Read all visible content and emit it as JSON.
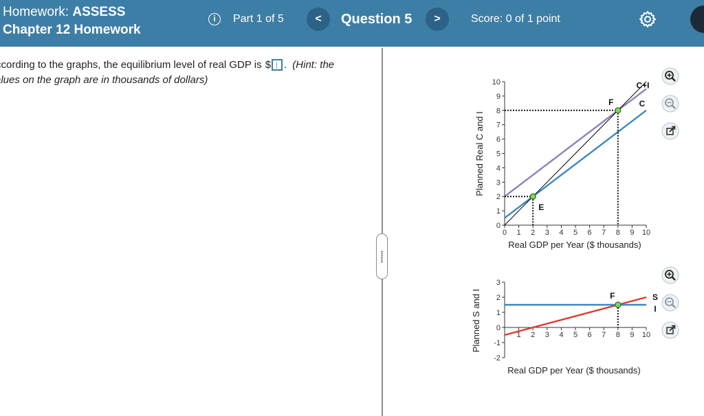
{
  "header": {
    "homework_prefix": "Homework: ",
    "homework_name": "ASSESS",
    "chapter": "Chapter 12 Homework",
    "part": "Part 1 of 5",
    "prev_symbol": "<",
    "question": "Question 5",
    "next_symbol": ">",
    "score": "Score: 0 of 1 point",
    "info_symbol": "i"
  },
  "question": {
    "text_before_box": "ccording to the graphs, the equilibrium level of real GDP is",
    "dollar": "$",
    "after_box": ".",
    "hint": "(Hint: the",
    "line2": "alues on the graph are in thousands of dollars)"
  },
  "colors": {
    "header_bg": "#3d7ea6",
    "c_line": "#3a87c4",
    "ci_line": "#8c7fbf",
    "s_line": "#e03a2f",
    "i_line": "#3a87c4",
    "point_fill": "#7ed957"
  },
  "chart_data": [
    {
      "type": "line",
      "ylabel": "Planned Real C and I",
      "xlabel": "Real GDP per Year ($ thousands)",
      "xlim": [
        0,
        10
      ],
      "ylim": [
        0,
        10
      ],
      "x_ticks": [
        "0",
        "1",
        "2",
        "3",
        "4",
        "5",
        "6",
        "7",
        "8",
        "9",
        "10"
      ],
      "y_ticks": [
        "0",
        "1",
        "2",
        "3",
        "4",
        "5",
        "6",
        "7",
        "8",
        "9",
        "10"
      ],
      "series": [
        {
          "name": "C",
          "x": [
            0,
            10
          ],
          "y": [
            0.5,
            8.0
          ],
          "color": "#3a87c4"
        },
        {
          "name": "C+I",
          "x": [
            0,
            10
          ],
          "y": [
            2.0,
            9.5
          ],
          "color": "#8c7fbf"
        },
        {
          "x": [
            0,
            10
          ],
          "y": [
            0,
            10
          ],
          "color": "#000000"
        }
      ],
      "points": [
        {
          "label": "E",
          "x": 2,
          "y": 2
        },
        {
          "label": "F",
          "x": 8,
          "y": 8
        }
      ]
    },
    {
      "type": "line",
      "ylabel": "Planned S and I",
      "xlabel": "Real GDP per Year ($ thousands)",
      "xlim": [
        0,
        10
      ],
      "ylim": [
        -2,
        3
      ],
      "x_ticks": [
        "1",
        "2",
        "3",
        "4",
        "5",
        "6",
        "7",
        "8",
        "9",
        "10"
      ],
      "y_ticks": [
        "-2",
        "-1",
        "0",
        "1",
        "2",
        "3"
      ],
      "series": [
        {
          "name": "S",
          "x": [
            0,
            10
          ],
          "y": [
            -0.5,
            2.0
          ],
          "color": "#e03a2f"
        },
        {
          "name": "I",
          "x": [
            0,
            10
          ],
          "y": [
            1.5,
            1.5
          ],
          "color": "#3a87c4"
        }
      ],
      "points": [
        {
          "label": "F",
          "x": 8,
          "y": 1.5
        }
      ]
    }
  ],
  "tools": {
    "zoom_in_icon": "zoom-in-icon",
    "zoom_out_icon": "zoom-out-icon",
    "popout_icon": "popout-icon"
  }
}
